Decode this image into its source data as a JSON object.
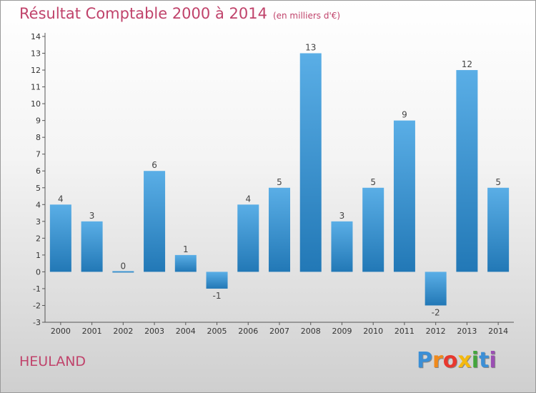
{
  "title": "Résultat Comptable 2000 à 2014",
  "subtitle": "(en milliers d'€)",
  "commune": "HEULAND",
  "brand": {
    "letters": [
      "P",
      "r",
      "o",
      "x",
      "i",
      "t",
      "i"
    ],
    "colors": [
      "#3b8fd6",
      "#f08a1c",
      "#e8382e",
      "#f4b90f",
      "#42a53c",
      "#3b8fd6",
      "#9b4fb3"
    ]
  },
  "colors": {
    "bar_top": "#5aaee6",
    "bar_bottom": "#2278b6",
    "text": "#c0436b"
  },
  "chart_data": {
    "type": "bar",
    "categories": [
      "2000",
      "2001",
      "2002",
      "2003",
      "2004",
      "2005",
      "2006",
      "2007",
      "2008",
      "2009",
      "2010",
      "2011",
      "2012",
      "2013",
      "2014"
    ],
    "values": [
      4,
      3,
      0,
      6,
      1,
      -1,
      4,
      5,
      13,
      3,
      5,
      9,
      -2,
      12,
      5
    ],
    "data_labels": [
      "4",
      "3",
      "0",
      "6",
      "1",
      "-1",
      "4",
      "5",
      "13",
      "3",
      "5",
      "9",
      "-2",
      "12",
      "5"
    ],
    "yticks": [
      -3,
      -2,
      -1,
      0,
      1,
      2,
      3,
      4,
      5,
      6,
      7,
      8,
      9,
      10,
      11,
      12,
      13,
      14
    ],
    "ylim": [
      -3,
      14
    ],
    "grid": false,
    "legend": "none"
  }
}
